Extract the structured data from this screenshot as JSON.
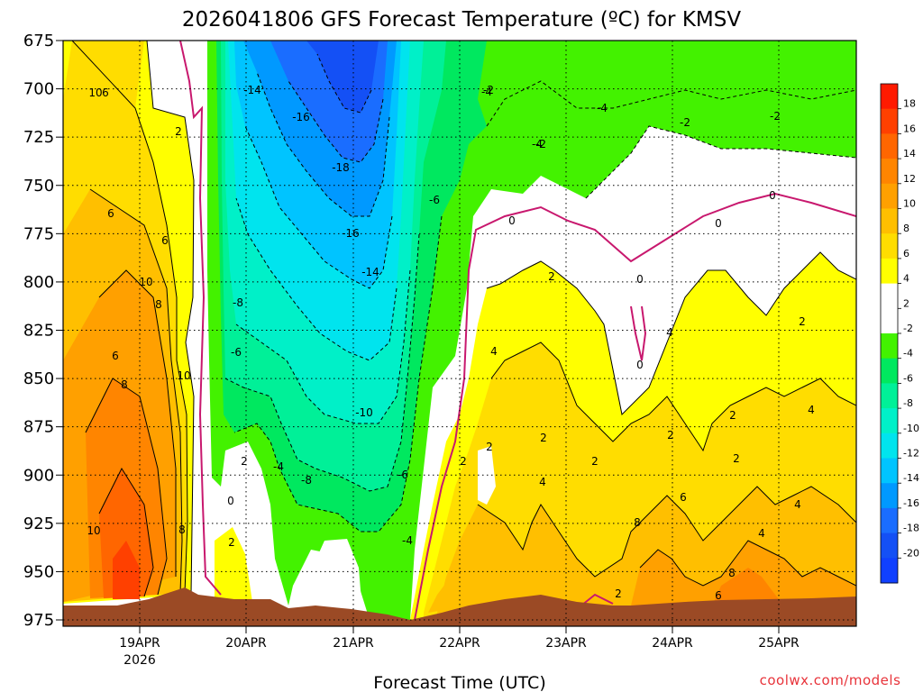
{
  "chart_data": {
    "type": "heatmap",
    "title": "2026041806 GFS Forecast Temperature (ºC) for KMSV",
    "xlabel": "Forecast Time (UTC)",
    "credit": "coolwx.com/models",
    "y_ticks": [
      "675",
      "700",
      "725",
      "750",
      "775",
      "800",
      "825",
      "850",
      "875",
      "900",
      "925",
      "950",
      "975"
    ],
    "ylim": [
      975,
      675
    ],
    "x_ticks": [
      "19APR",
      "20APR",
      "21APR",
      "22APR",
      "23APR",
      "24APR",
      "25APR"
    ],
    "x_year_label": "2026",
    "grid": true,
    "colorbar": {
      "labels": [
        "18",
        "16",
        "14",
        "12",
        "10",
        "8",
        "6",
        "4",
        "2",
        "-2",
        "-4",
        "-6",
        "-8",
        "-10",
        "-12",
        "-14",
        "-16",
        "-18",
        "-20"
      ],
      "colors": [
        "#ff1a00",
        "#ff4000",
        "#ff6600",
        "#ff8500",
        "#ffa000",
        "#ffbf00",
        "#ffdd00",
        "#ffff00",
        "#ffffff",
        "#ffffff",
        "#43f200",
        "#00e85f",
        "#00f098",
        "#00f0c8",
        "#00e4ee",
        "#00c4ff",
        "#0099ff",
        "#1a6dff",
        "#1450f5",
        "#1040ff"
      ]
    },
    "terrain_color": "#9b4a25",
    "freezing_line_color": "#c8186e",
    "contour_labels": [
      {
        "text": "-14"
      },
      {
        "text": "-16"
      },
      {
        "text": "-18"
      },
      {
        "text": "-16"
      },
      {
        "text": "-14"
      },
      {
        "text": "-8"
      },
      {
        "text": "-6"
      },
      {
        "text": "-10"
      },
      {
        "text": "-8"
      },
      {
        "text": "-6"
      },
      {
        "text": "-4"
      },
      {
        "text": "-4"
      },
      {
        "text": "-2"
      },
      {
        "text": "-4"
      },
      {
        "text": "-6"
      },
      {
        "text": "-4"
      },
      {
        "text": "-4"
      },
      {
        "text": "-2"
      },
      {
        "text": "-2"
      },
      {
        "text": "-2"
      },
      {
        "text": "4"
      },
      {
        "text": "2"
      },
      {
        "text": "6"
      },
      {
        "text": "6"
      },
      {
        "text": "10"
      },
      {
        "text": "8"
      },
      {
        "text": "6"
      },
      {
        "text": "8"
      },
      {
        "text": "10"
      },
      {
        "text": "10"
      },
      {
        "text": "8"
      },
      {
        "text": "2"
      },
      {
        "text": "2"
      },
      {
        "text": "2"
      },
      {
        "text": "4"
      },
      {
        "text": "2"
      },
      {
        "text": "2"
      },
      {
        "text": "4"
      },
      {
        "text": "2"
      },
      {
        "text": "2"
      },
      {
        "text": "2"
      },
      {
        "text": "2"
      },
      {
        "text": "4"
      },
      {
        "text": "6"
      },
      {
        "text": "8"
      },
      {
        "text": "2"
      },
      {
        "text": "2"
      },
      {
        "text": "4"
      },
      {
        "text": "4"
      },
      {
        "text": "6"
      },
      {
        "text": "8"
      },
      {
        "text": "10"
      },
      {
        "text": "6"
      },
      {
        "text": "2"
      }
    ],
    "freezing_labels": [
      {
        "text": "0"
      },
      {
        "text": "0"
      },
      {
        "text": "0"
      },
      {
        "text": "0"
      },
      {
        "text": "0"
      },
      {
        "text": "0"
      }
    ]
  }
}
